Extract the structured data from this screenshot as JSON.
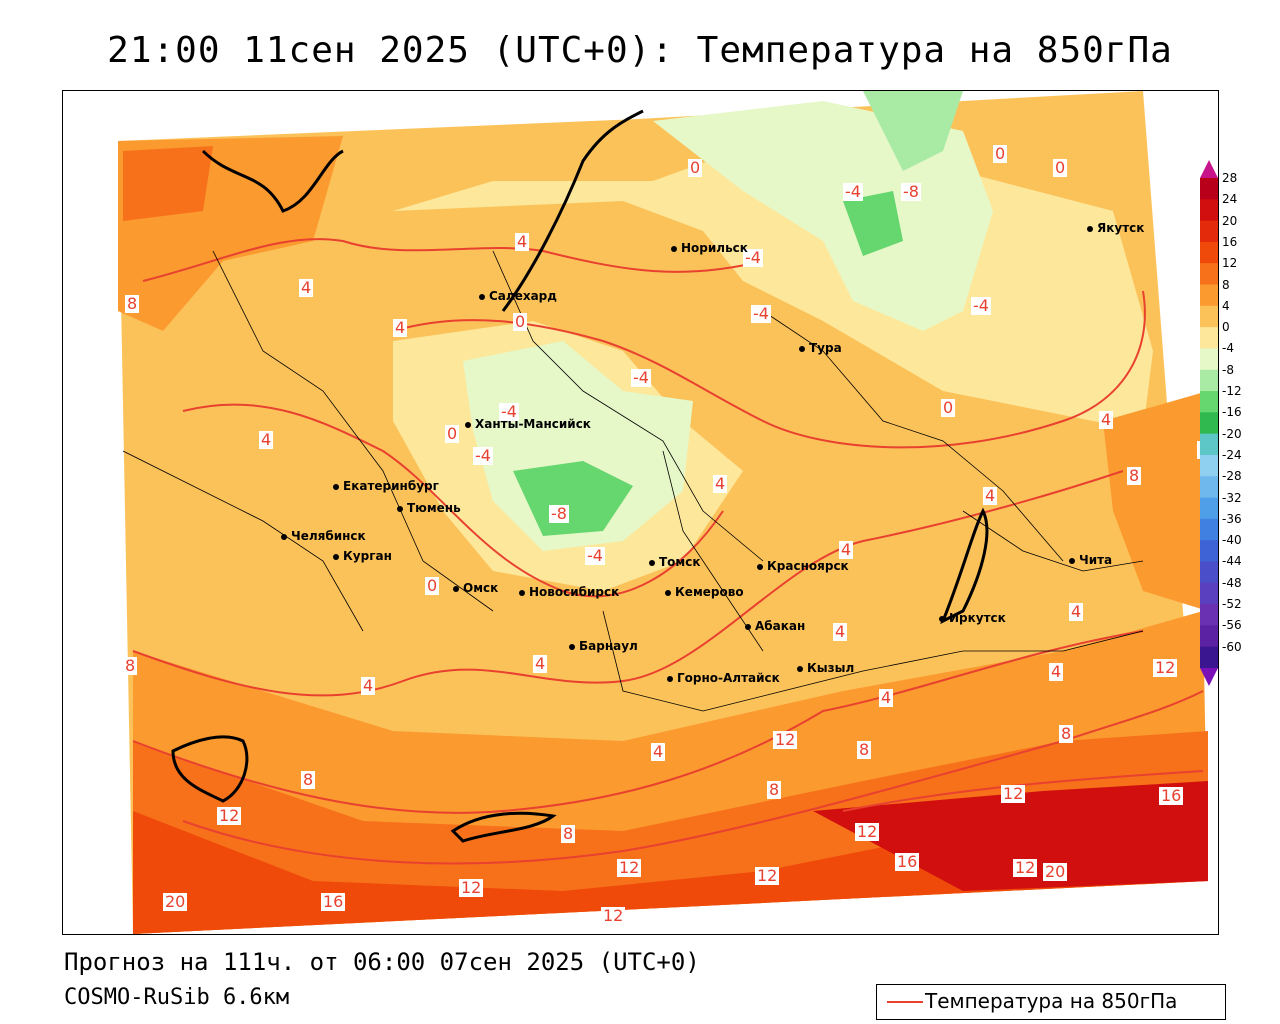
{
  "title": "21:00 11сен 2025 (UTC+0): Температура на 850гПа",
  "forecast_line": "Прогноз на 111ч. от 06:00 07сен 2025 (UTC+0)",
  "model": "COSMO-RuSib 6.6км",
  "legend": {
    "label": "Температура на 850гПа",
    "color": "#e8412f"
  },
  "colorbar": {
    "ticks": [
      "28",
      "24",
      "20",
      "16",
      "12",
      "8",
      "4",
      "0",
      "-4",
      "-8",
      "-12",
      "-16",
      "-20",
      "-24",
      "-28",
      "-32",
      "-36",
      "-40",
      "-44",
      "-48",
      "-52",
      "-56",
      "-60"
    ],
    "colors": [
      "#b8001a",
      "#d10f0f",
      "#e32a0a",
      "#ef4a0a",
      "#f7701a",
      "#fb9a2f",
      "#fcc25a",
      "#fde79a",
      "#e6f8c8",
      "#a9eaa4",
      "#66d66e",
      "#2fb94e",
      "#5dc6c6",
      "#8fd0f0",
      "#6fb8ee",
      "#4f9ee8",
      "#3f80e0",
      "#3d63d6",
      "#4a4ec8",
      "#5a3fbe",
      "#6a31b2",
      "#5b23a3",
      "#3a1690"
    ]
  },
  "cities": [
    {
      "name": "Норильск"
    },
    {
      "name": "Якутск"
    },
    {
      "name": "Салехард"
    },
    {
      "name": "Тура"
    },
    {
      "name": "Ханты-Мансийск"
    },
    {
      "name": "Екатеринбург"
    },
    {
      "name": "Тюмень"
    },
    {
      "name": "Челябинск"
    },
    {
      "name": "Курган"
    },
    {
      "name": "Омск"
    },
    {
      "name": "Томск"
    },
    {
      "name": "Красноярск"
    },
    {
      "name": "Новосибирск"
    },
    {
      "name": "Кемерово"
    },
    {
      "name": "Абакан"
    },
    {
      "name": "Барнаул"
    },
    {
      "name": "Горно-Алтайск"
    },
    {
      "name": "Кызыл"
    },
    {
      "name": "Иркутск"
    },
    {
      "name": "Чита"
    }
  ],
  "contour_labels": [
    "0",
    "-4",
    "-8",
    "0",
    "0",
    "4",
    "-4",
    "4",
    "0",
    "-4",
    "-4",
    "8",
    "4",
    "-4",
    "4",
    "-4",
    "0",
    "4",
    "-4",
    "0",
    "-8",
    "4",
    "8",
    "8",
    "4",
    "-4",
    "4",
    "0",
    "4",
    "4",
    "8",
    "4",
    "4",
    "12",
    "4",
    "4",
    "12",
    "8",
    "8",
    "4",
    "8",
    "12",
    "8",
    "12",
    "16",
    "12",
    "8",
    "12",
    "16",
    "20",
    "12",
    "12",
    "20",
    "16",
    "12",
    "12"
  ]
}
